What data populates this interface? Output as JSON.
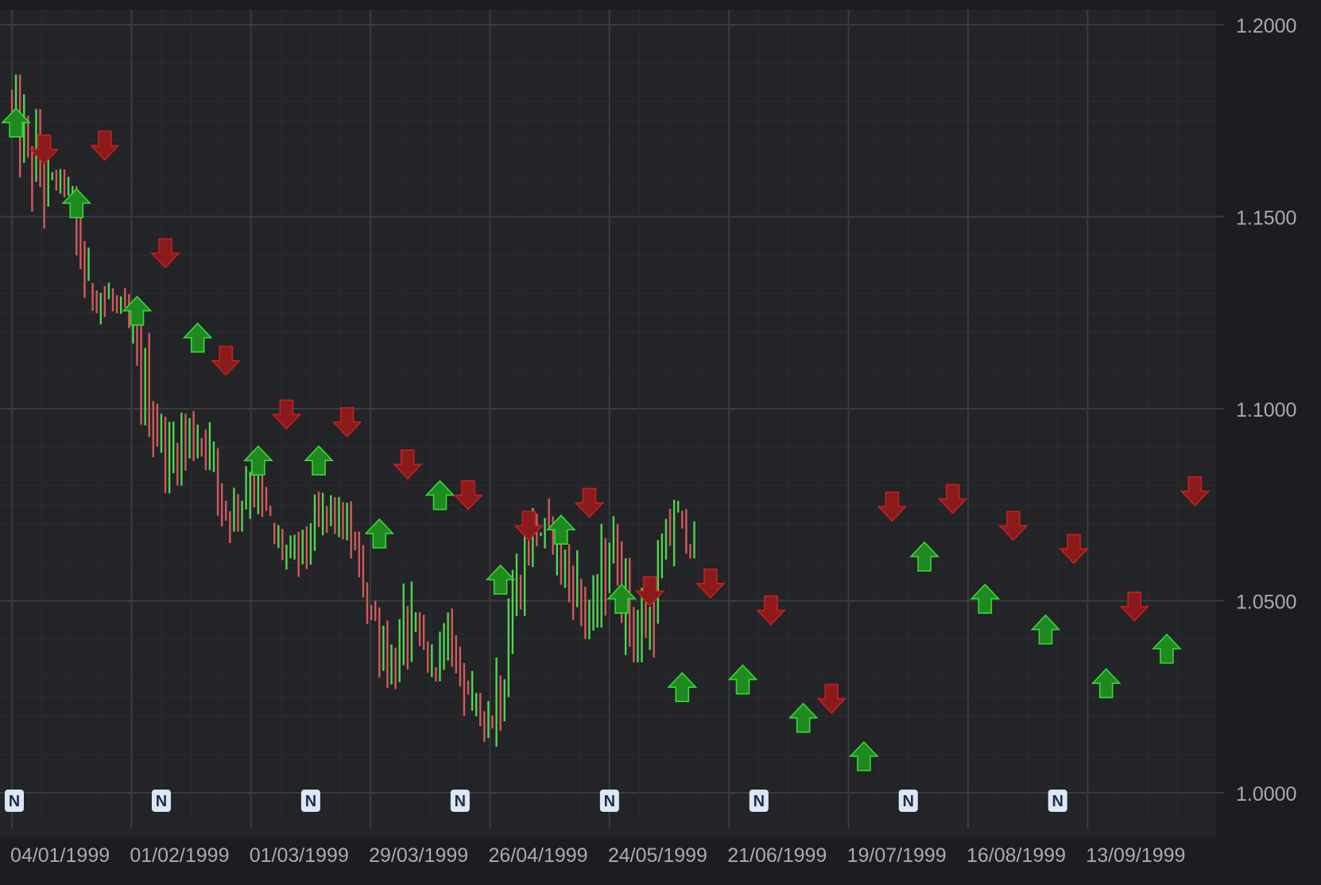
{
  "chart_data": {
    "type": "ohlc",
    "title": "",
    "xlabel": "",
    "ylabel": "",
    "ylim": [
      0.995,
      1.205
    ],
    "y_ticks": [
      "1.2000",
      "1.1500",
      "1.1000",
      "1.0500",
      "1.0000"
    ],
    "y_tick_values": [
      1.2,
      1.15,
      1.1,
      1.05,
      1.0
    ],
    "x_ticks": [
      "04/01/1999",
      "01/02/1999",
      "01/03/1999",
      "29/03/1999",
      "26/04/1999",
      "24/05/1999",
      "21/06/1999",
      "19/07/1999",
      "16/08/1999",
      "13/09/1999"
    ],
    "grid": true,
    "colors": {
      "background": "#1c1d20",
      "plot_background": "#232427",
      "grid": "#3a3b3f",
      "axis_text": "#a9abaf",
      "up": "#52d452",
      "down": "#d25a5a",
      "buy_marker": "#1f8a1f",
      "sell_marker": "#8b1a1a",
      "news_badge": "#dbe6f7",
      "news_text": "#1f2b44"
    },
    "bars_per_week": 5,
    "weekly_ohlc": [
      {
        "open": 1.18,
        "high": 1.187,
        "low": 1.158,
        "close": 1.167
      },
      {
        "open": 1.166,
        "high": 1.178,
        "low": 1.145,
        "close": 1.16
      },
      {
        "open": 1.16,
        "high": 1.164,
        "low": 1.155,
        "close": 1.158
      },
      {
        "open": 1.157,
        "high": 1.158,
        "low": 1.126,
        "close": 1.13
      },
      {
        "open": 1.132,
        "high": 1.138,
        "low": 1.122,
        "close": 1.128
      },
      {
        "open": 1.129,
        "high": 1.133,
        "low": 1.118,
        "close": 1.122
      },
      {
        "open": 1.12,
        "high": 1.123,
        "low": 1.092,
        "close": 1.1
      },
      {
        "open": 1.1,
        "high": 1.102,
        "low": 1.078,
        "close": 1.086
      },
      {
        "open": 1.086,
        "high": 1.106,
        "low": 1.08,
        "close": 1.094
      },
      {
        "open": 1.094,
        "high": 1.107,
        "low": 1.084,
        "close": 1.09
      },
      {
        "open": 1.088,
        "high": 1.092,
        "low": 1.065,
        "close": 1.07
      },
      {
        "open": 1.07,
        "high": 1.088,
        "low": 1.068,
        "close": 1.082
      },
      {
        "open": 1.082,
        "high": 1.085,
        "low": 1.062,
        "close": 1.07
      },
      {
        "open": 1.068,
        "high": 1.071,
        "low": 1.057,
        "close": 1.061
      },
      {
        "open": 1.061,
        "high": 1.073,
        "low": 1.055,
        "close": 1.066
      },
      {
        "open": 1.066,
        "high": 1.082,
        "low": 1.063,
        "close": 1.075
      },
      {
        "open": 1.075,
        "high": 1.077,
        "low": 1.061,
        "close": 1.066
      },
      {
        "open": 1.066,
        "high": 1.068,
        "low": 1.042,
        "close": 1.048
      },
      {
        "open": 1.048,
        "high": 1.05,
        "low": 1.027,
        "close": 1.032
      },
      {
        "open": 1.032,
        "high": 1.055,
        "low": 1.027,
        "close": 1.045
      },
      {
        "open": 1.045,
        "high": 1.047,
        "low": 1.028,
        "close": 1.032
      },
      {
        "open": 1.032,
        "high": 1.049,
        "low": 1.029,
        "close": 1.039
      },
      {
        "open": 1.039,
        "high": 1.041,
        "low": 1.02,
        "close": 1.024
      },
      {
        "open": 1.024,
        "high": 1.026,
        "low": 1.011,
        "close": 1.019
      },
      {
        "open": 1.018,
        "high": 1.058,
        "low": 1.012,
        "close": 1.048
      },
      {
        "open": 1.048,
        "high": 1.075,
        "low": 1.046,
        "close": 1.07
      },
      {
        "open": 1.07,
        "high": 1.082,
        "low": 1.062,
        "close": 1.065
      },
      {
        "open": 1.065,
        "high": 1.07,
        "low": 1.045,
        "close": 1.052
      },
      {
        "open": 1.052,
        "high": 1.069,
        "low": 1.04,
        "close": 1.045
      },
      {
        "open": 1.045,
        "high": 1.072,
        "low": 1.043,
        "close": 1.068
      },
      {
        "open": 1.068,
        "high": 1.07,
        "low": 1.034,
        "close": 1.04
      },
      {
        "open": 1.04,
        "high": 1.055,
        "low": 1.029,
        "close": 1.046
      },
      {
        "open": 1.046,
        "high": 1.077,
        "low": 1.044,
        "close": 1.073
      },
      {
        "open": 1.073,
        "high": 1.076,
        "low": 1.061,
        "close": 1.064
      }
    ],
    "signals": [
      {
        "type": "buy",
        "index": 1,
        "price": 1.1745
      },
      {
        "type": "sell",
        "index": 8,
        "price": 1.1675
      },
      {
        "type": "buy",
        "index": 16,
        "price": 1.1535
      },
      {
        "type": "sell",
        "index": 23,
        "price": 1.1685
      },
      {
        "type": "buy",
        "index": 31,
        "price": 1.1255
      },
      {
        "type": "sell",
        "index": 38,
        "price": 1.1405
      },
      {
        "type": "buy",
        "index": 46,
        "price": 1.1185
      },
      {
        "type": "sell",
        "index": 53,
        "price": 1.1125
      },
      {
        "type": "buy",
        "index": 61,
        "price": 1.0865
      },
      {
        "type": "sell",
        "index": 68,
        "price": 1.0985
      },
      {
        "type": "buy",
        "index": 76,
        "price": 1.0865
      },
      {
        "type": "sell",
        "index": 83,
        "price": 1.0965
      },
      {
        "type": "buy",
        "index": 91,
        "price": 1.0675
      },
      {
        "type": "sell",
        "index": 98,
        "price": 1.0855
      },
      {
        "type": "buy",
        "index": 106,
        "price": 1.0775
      },
      {
        "type": "sell",
        "index": 113,
        "price": 1.0775
      },
      {
        "type": "buy",
        "index": 121,
        "price": 1.0555
      },
      {
        "type": "sell",
        "index": 128,
        "price": 1.0695
      },
      {
        "type": "buy",
        "index": 136,
        "price": 1.0685
      },
      {
        "type": "sell",
        "index": 143,
        "price": 1.0755
      },
      {
        "type": "buy",
        "index": 151,
        "price": 1.0505
      },
      {
        "type": "sell",
        "index": 158,
        "price": 1.0525
      },
      {
        "type": "buy",
        "index": 166,
        "price": 1.0275
      },
      {
        "type": "sell",
        "index": 173,
        "price": 1.0545
      },
      {
        "type": "buy",
        "index": 181,
        "price": 1.0295
      },
      {
        "type": "sell",
        "index": 188,
        "price": 1.0475
      },
      {
        "type": "buy",
        "index": 196,
        "price": 1.0195
      },
      {
        "type": "sell",
        "index": 203,
        "price": 1.0245
      },
      {
        "type": "buy",
        "index": 211,
        "price": 1.0095
      },
      {
        "type": "sell",
        "index": 218,
        "price": 1.0745
      },
      {
        "type": "buy",
        "index": 226,
        "price": 1.0615
      },
      {
        "type": "sell",
        "index": 233,
        "price": 1.0765
      },
      {
        "type": "buy",
        "index": 241,
        "price": 1.0505
      },
      {
        "type": "sell",
        "index": 248,
        "price": 1.0695
      },
      {
        "type": "buy",
        "index": 256,
        "price": 1.0425
      },
      {
        "type": "sell",
        "index": 263,
        "price": 1.0635
      },
      {
        "type": "buy",
        "index": 271,
        "price": 1.0285
      },
      {
        "type": "sell",
        "index": 278,
        "price": 1.0485
      },
      {
        "type": "buy",
        "index": 286,
        "price": 1.0375
      },
      {
        "type": "sell",
        "index": 293,
        "price": 1.0785
      }
    ],
    "news_markers": [
      {
        "label": "N",
        "index": 0
      },
      {
        "label": "N",
        "index": 37
      },
      {
        "label": "N",
        "index": 74
      },
      {
        "label": "N",
        "index": 111
      },
      {
        "label": "N",
        "index": 148
      },
      {
        "label": "N",
        "index": 185
      },
      {
        "label": "N",
        "index": 222
      },
      {
        "label": "N",
        "index": 259
      }
    ]
  }
}
